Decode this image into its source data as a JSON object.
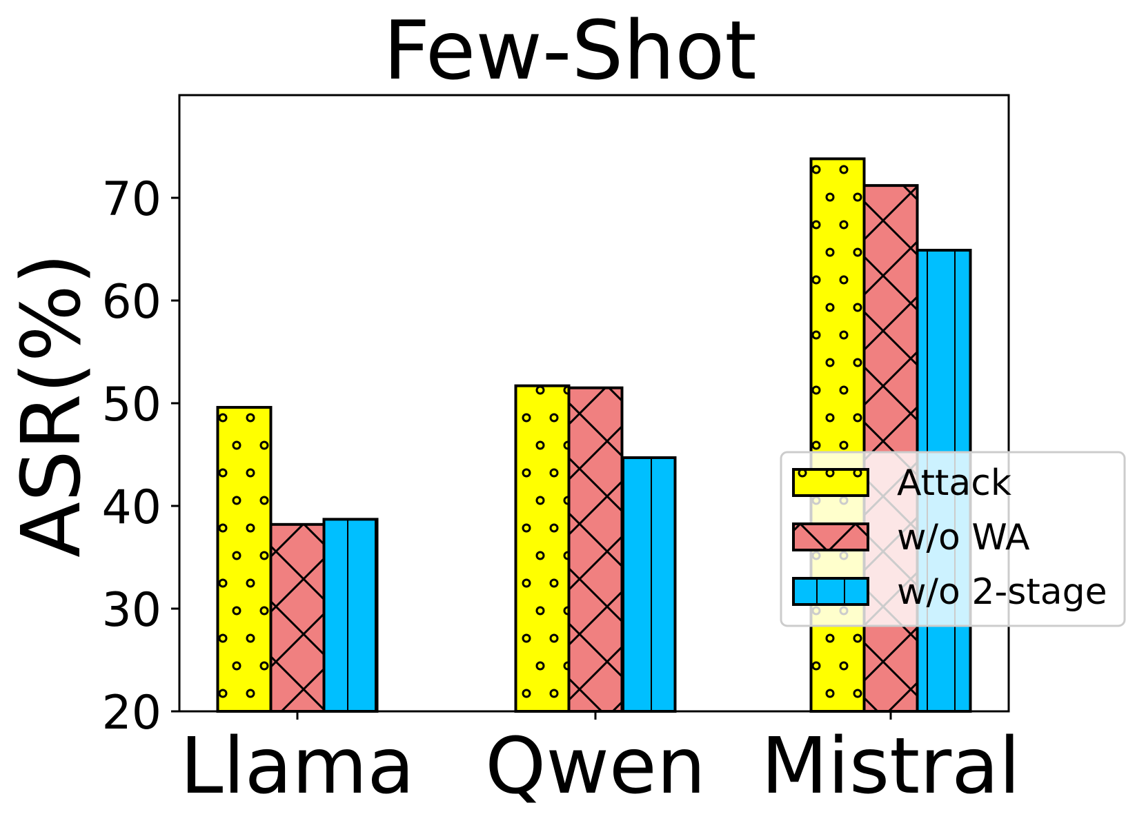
{
  "chart_data": {
    "type": "bar",
    "title": "Few-Shot",
    "xlabel": "",
    "ylabel": "ASR(%)",
    "categories": [
      "Llama",
      "Qwen",
      "Mistral"
    ],
    "series": [
      {
        "name": "Attack",
        "values": [
          49.6,
          51.7,
          73.8
        ],
        "color": "#ffff00",
        "hatch": "o"
      },
      {
        "name": "w/o WA",
        "values": [
          38.2,
          51.5,
          71.2
        ],
        "color": "#f08080",
        "hatch": "x"
      },
      {
        "name": "w/o 2-stage",
        "values": [
          38.7,
          44.7,
          64.9
        ],
        "color": "#00bfff",
        "hatch": "|"
      }
    ],
    "ylim": [
      20,
      80
    ],
    "yticks": [
      "20",
      "30",
      "40",
      "50",
      "60",
      "70"
    ],
    "grid": false,
    "legend_position": "center right"
  }
}
